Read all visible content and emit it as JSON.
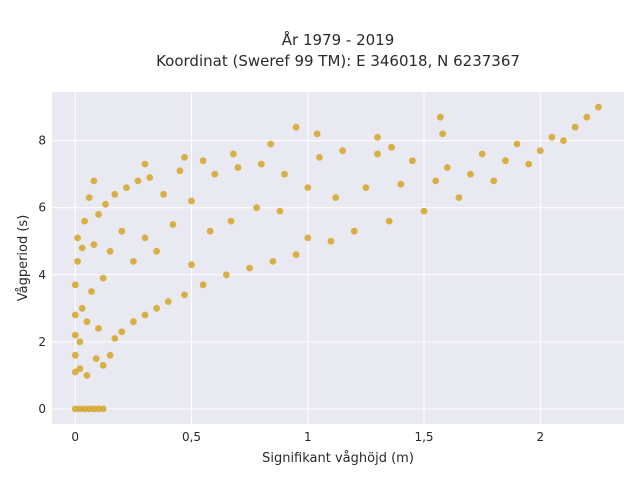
{
  "chart_data": {
    "type": "scatter",
    "title_lines": [
      "År 1979 - 2019",
      "Koordinat (Sweref 99 TM): E 346018, N 6237367"
    ],
    "xlabel": "Signifikant våghöjd (m)",
    "ylabel": "Vågperiod (s)",
    "xlim": [
      -0.1,
      2.36
    ],
    "ylim": [
      -0.45,
      9.45
    ],
    "x_ticks": [
      0,
      0.5,
      1,
      1.5,
      2
    ],
    "x_tick_labels": [
      "0",
      "0,5",
      "1",
      "1,5",
      "2"
    ],
    "y_ticks": [
      0,
      2,
      4,
      6,
      8
    ],
    "y_tick_labels": [
      "0",
      "2",
      "4",
      "6",
      "8"
    ],
    "grid": true,
    "legend": "none",
    "colors": {
      "marker": "#D4A21F",
      "plot_background": "#E9E9F1",
      "grid": "#FFFFFF"
    },
    "points": [
      [
        0.0,
        0.0
      ],
      [
        0.02,
        0.0
      ],
      [
        0.04,
        0.0
      ],
      [
        0.06,
        0.0
      ],
      [
        0.08,
        0.0
      ],
      [
        0.1,
        0.0
      ],
      [
        0.12,
        0.0
      ],
      [
        0.0,
        1.1
      ],
      [
        0.0,
        1.6
      ],
      [
        0.0,
        2.2
      ],
      [
        0.0,
        2.8
      ],
      [
        0.0,
        3.7
      ],
      [
        0.01,
        4.4
      ],
      [
        0.01,
        5.1
      ],
      [
        0.02,
        1.2
      ],
      [
        0.02,
        2.0
      ],
      [
        0.03,
        3.0
      ],
      [
        0.03,
        4.8
      ],
      [
        0.04,
        5.6
      ],
      [
        0.05,
        1.0
      ],
      [
        0.05,
        2.6
      ],
      [
        0.06,
        6.3
      ],
      [
        0.07,
        3.5
      ],
      [
        0.08,
        4.9
      ],
      [
        0.08,
        6.8
      ],
      [
        0.09,
        1.5
      ],
      [
        0.1,
        2.4
      ],
      [
        0.1,
        5.8
      ],
      [
        0.12,
        1.3
      ],
      [
        0.12,
        3.9
      ],
      [
        0.13,
        6.1
      ],
      [
        0.15,
        1.6
      ],
      [
        0.15,
        4.7
      ],
      [
        0.17,
        2.1
      ],
      [
        0.17,
        6.4
      ],
      [
        0.2,
        2.3
      ],
      [
        0.2,
        5.3
      ],
      [
        0.22,
        6.6
      ],
      [
        0.25,
        2.6
      ],
      [
        0.25,
        4.4
      ],
      [
        0.27,
        6.8
      ],
      [
        0.3,
        2.8
      ],
      [
        0.3,
        5.1
      ],
      [
        0.32,
        6.9
      ],
      [
        0.35,
        3.0
      ],
      [
        0.35,
        4.7
      ],
      [
        0.38,
        6.4
      ],
      [
        0.4,
        3.2
      ],
      [
        0.42,
        5.5
      ],
      [
        0.45,
        7.1
      ],
      [
        0.47,
        3.4
      ],
      [
        0.5,
        4.3
      ],
      [
        0.5,
        6.2
      ],
      [
        0.55,
        3.7
      ],
      [
        0.58,
        5.3
      ],
      [
        0.6,
        7.0
      ],
      [
        0.65,
        4.0
      ],
      [
        0.67,
        5.6
      ],
      [
        0.7,
        7.2
      ],
      [
        0.75,
        4.2
      ],
      [
        0.78,
        6.0
      ],
      [
        0.8,
        7.3
      ],
      [
        0.85,
        4.4
      ],
      [
        0.88,
        5.9
      ],
      [
        0.9,
        7.0
      ],
      [
        0.95,
        4.6
      ],
      [
        1.0,
        5.1
      ],
      [
        1.0,
        6.6
      ],
      [
        1.05,
        7.5
      ],
      [
        1.1,
        5.0
      ],
      [
        1.12,
        6.3
      ],
      [
        1.15,
        7.7
      ],
      [
        1.2,
        5.3
      ],
      [
        1.25,
        6.6
      ],
      [
        1.3,
        7.6
      ],
      [
        1.35,
        5.6
      ],
      [
        1.4,
        6.7
      ],
      [
        1.45,
        7.4
      ],
      [
        1.5,
        5.9
      ],
      [
        1.55,
        6.8
      ],
      [
        1.6,
        7.2
      ],
      [
        1.65,
        6.3
      ],
      [
        1.7,
        7.0
      ],
      [
        1.75,
        7.6
      ],
      [
        1.8,
        6.8
      ],
      [
        1.85,
        7.4
      ],
      [
        1.9,
        7.9
      ],
      [
        1.95,
        7.3
      ],
      [
        2.0,
        7.7
      ],
      [
        2.05,
        8.1
      ],
      [
        2.1,
        8.0
      ],
      [
        2.15,
        8.4
      ],
      [
        2.2,
        8.7
      ],
      [
        2.25,
        9.0
      ],
      [
        1.58,
        8.2
      ],
      [
        1.04,
        8.2
      ],
      [
        0.95,
        8.4
      ],
      [
        0.84,
        7.9
      ],
      [
        1.36,
        7.8
      ],
      [
        1.57,
        8.7
      ],
      [
        1.3,
        8.1
      ],
      [
        0.47,
        7.5
      ],
      [
        0.3,
        7.3
      ],
      [
        0.55,
        7.4
      ],
      [
        0.68,
        7.6
      ]
    ]
  }
}
